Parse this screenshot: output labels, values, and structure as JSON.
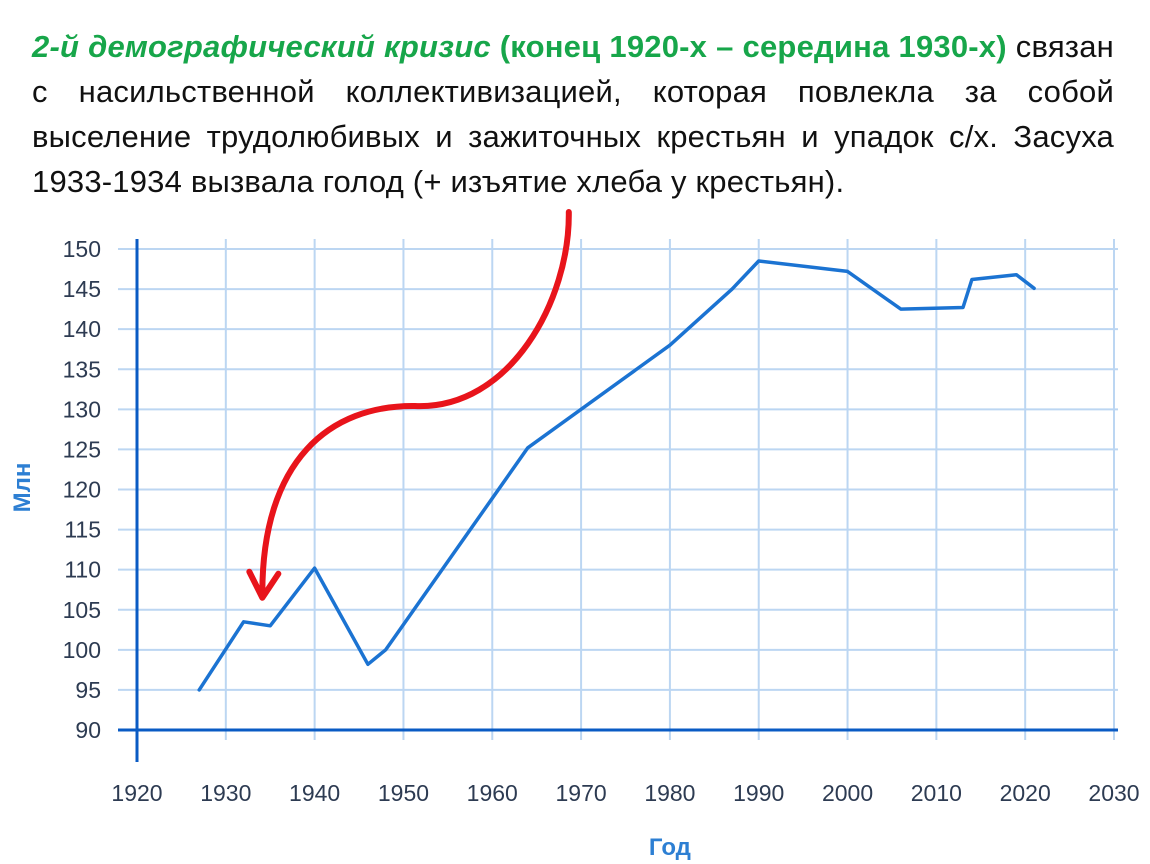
{
  "slide": {
    "heading_italic": "2-й демографический кризис",
    "heading_period": "(конец 1920-х – середина 1930-х)",
    "body": "связан с насильственной коллективизацией, которая повлекла за собой выселение трудолюбивых и зажиточных крестьян и упадок с/х. Засуха 1933-1934 вызвала голод (+ изъятие хлеба  у крестьян)."
  },
  "colors": {
    "accent_text": "#17a64a",
    "line": "#1b73d2",
    "grid": "#bcd6f2",
    "axis": "#0a5bc4",
    "arrow": "#e8141b"
  },
  "chart_data": {
    "type": "line",
    "title": "",
    "xlabel": "Год",
    "ylabel": "Млн",
    "xlim": [
      1920,
      2030
    ],
    "ylim": [
      90,
      150
    ],
    "x_ticks": [
      1920,
      1930,
      1940,
      1950,
      1960,
      1970,
      1980,
      1990,
      2000,
      2010,
      2020,
      2030
    ],
    "y_ticks": [
      90,
      95,
      100,
      105,
      110,
      115,
      120,
      125,
      130,
      135,
      140,
      145,
      150
    ],
    "grid": true,
    "series": [
      {
        "x": [
          1927,
          1932,
          1935,
          1940,
          1946,
          1948,
          1964,
          1970,
          1980,
          1987,
          1990,
          2000,
          2006,
          2013,
          2014,
          2019,
          2021
        ],
        "values": [
          95,
          103.5,
          103,
          110.2,
          98.2,
          100,
          125.2,
          130,
          138,
          145,
          148.5,
          147.2,
          142.5,
          142.7,
          146.2,
          146.8,
          145.1
        ]
      }
    ],
    "annotation": {
      "type": "curved-arrow",
      "from": [
        1964,
        151
      ],
      "to": [
        1934,
        106
      ]
    }
  }
}
